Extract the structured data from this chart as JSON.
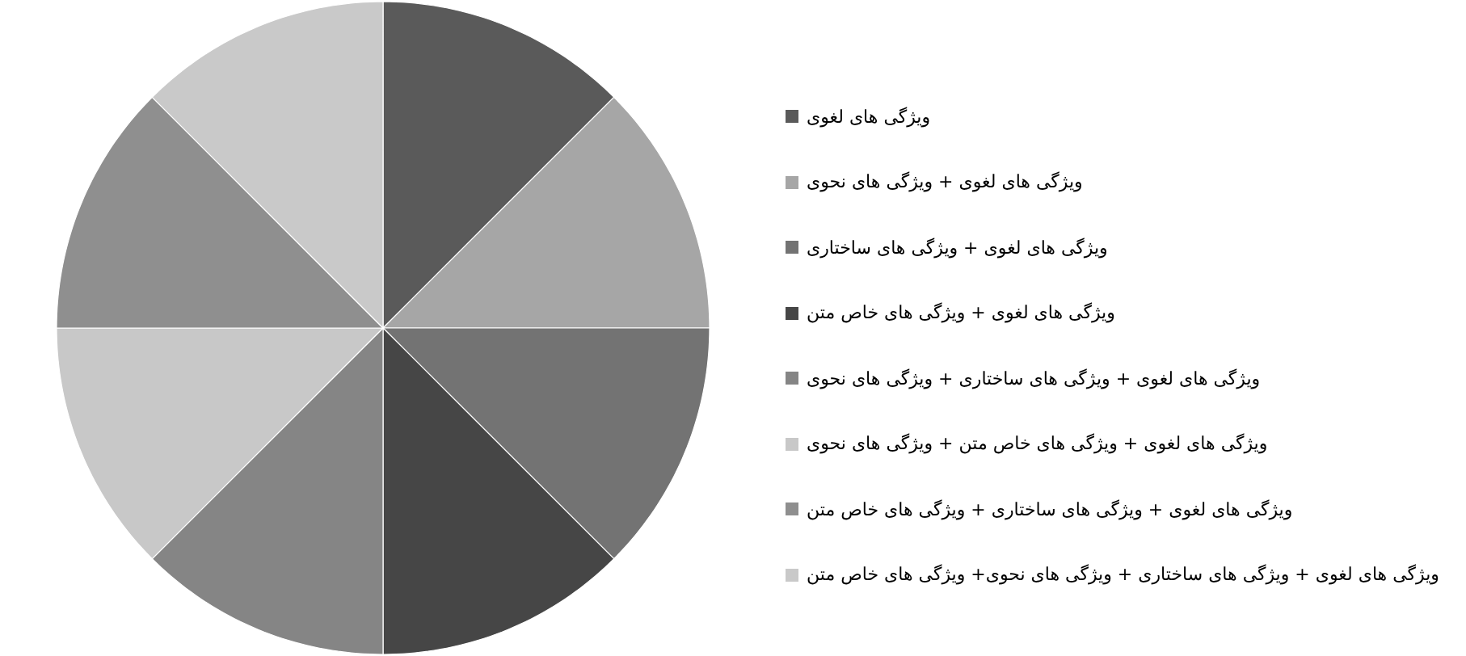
{
  "chart_data": {
    "type": "pie",
    "categories": [
      "ویژگی های لغوی",
      "ویژگی های لغوی +  ویژگی های نحوی",
      "ویژگی های لغوی + ویژگی های ساختاری",
      "ویژگی های لغوی + ویژگی های خاص متن",
      "ویژگی های لغوی + ویژگی های ساختاری + ویژگی های نحوی",
      "ویژگی های لغوی + ویژگی های خاص متن + ویژگی های نحوی",
      "ویژگی های لغوی + ویژگی های ساختاری + ویژگی های خاص متن",
      "ویژگی های لغوی + ویژگی های ساختاری + ویژگی های نحوی+  ویژگی های خاص متن"
    ],
    "values": [
      12.5,
      12.5,
      12.5,
      12.5,
      12.5,
      12.5,
      12.5,
      12.5
    ],
    "colors": [
      "#5a5a5a",
      "#a6a6a6",
      "#737373",
      "#464646",
      "#858585",
      "#c8c8c8",
      "#8f8f8f",
      "#c9c9c9"
    ],
    "legend": "right"
  }
}
